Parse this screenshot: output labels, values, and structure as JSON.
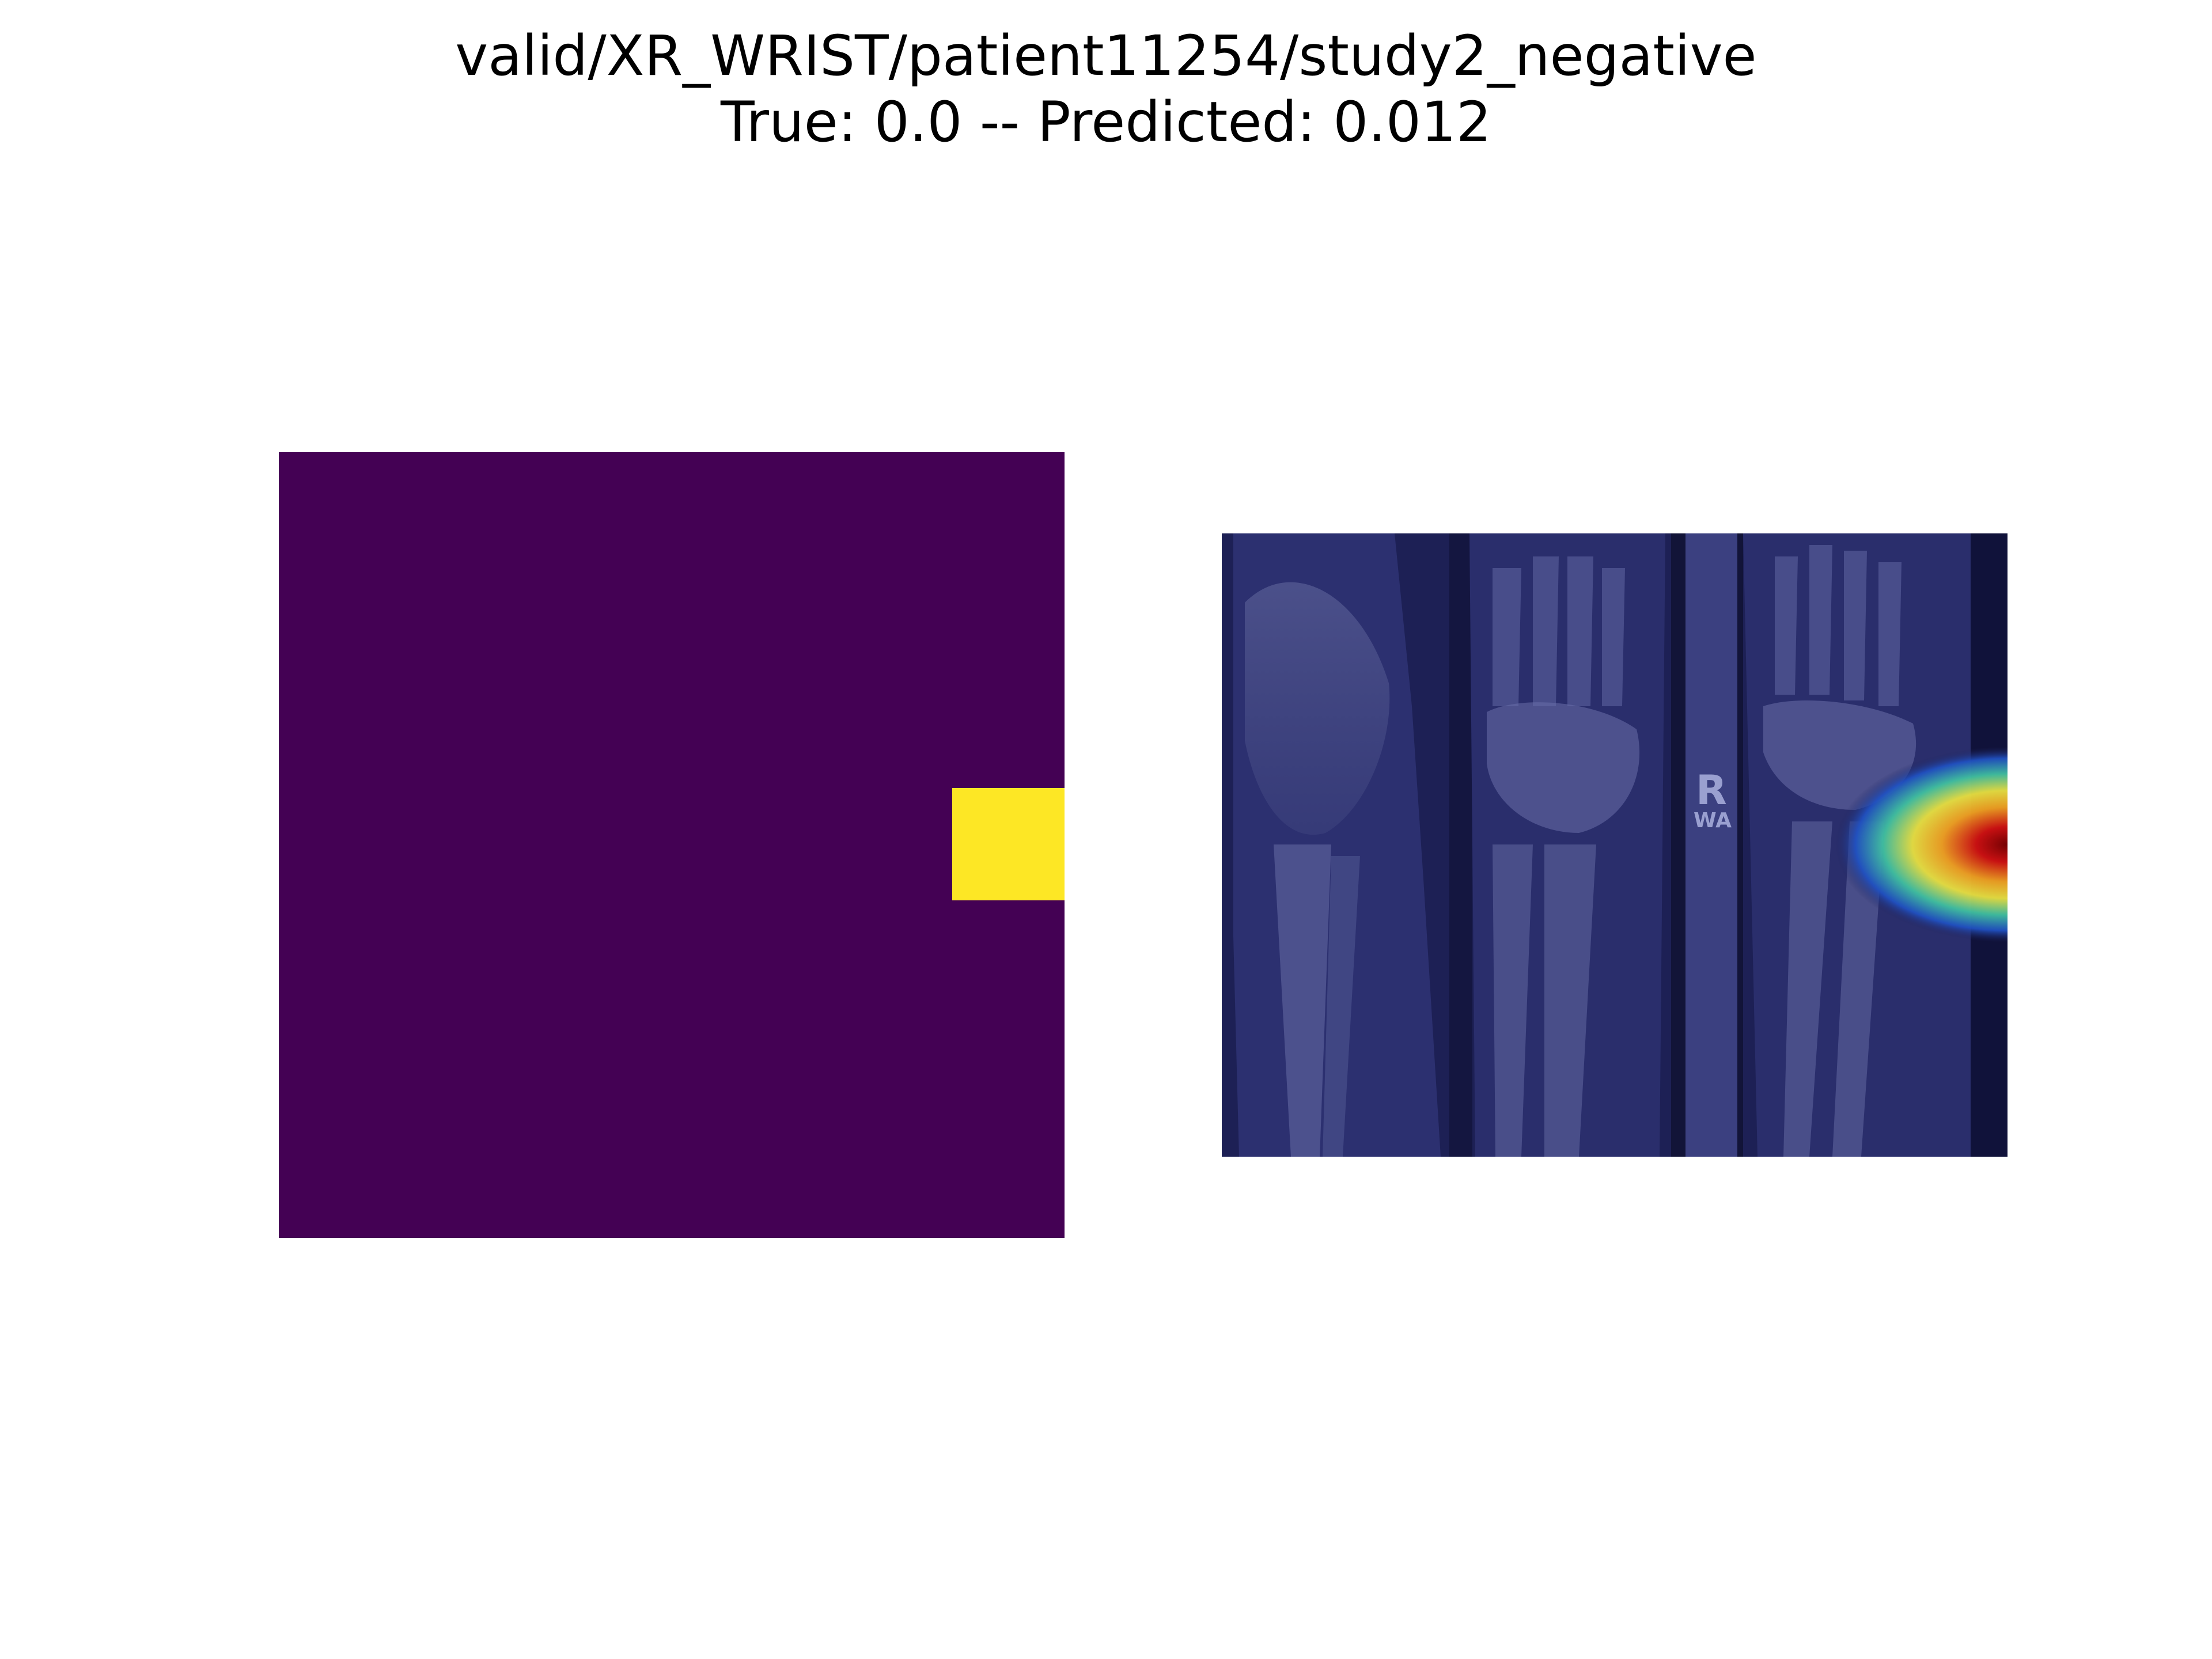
{
  "figure": {
    "title_line1": "valid/XR_WRIST/patient11254/study2_negative",
    "title_line2": "True: 0.0 -- Predicted: 0.012",
    "true_label": 0.0,
    "predicted_probability": 0.012
  },
  "panels": {
    "activation_map": {
      "colormap": "viridis",
      "low_color": "#440154",
      "high_color": "#fde725"
    },
    "xray_overlay": {
      "colormap": "jet",
      "marker_text": "WA"
    }
  }
}
